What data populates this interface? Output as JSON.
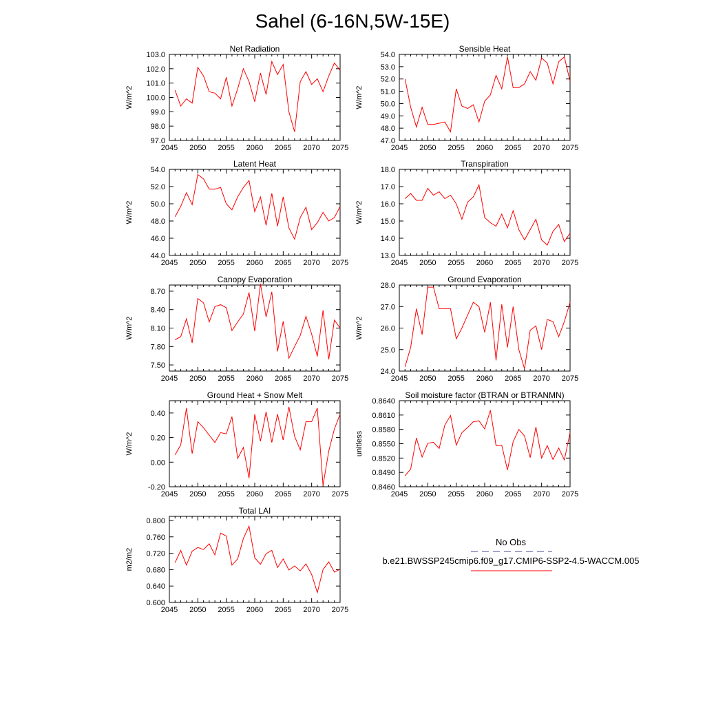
{
  "figure": {
    "title": "Sahel (6-16N,5W-15E)"
  },
  "legend": {
    "obs_label": "No Obs",
    "obs_color": "#4a4a9a",
    "model_label": "b.e21.BWSSP245cmip6.f09_g17.CMIP6-SSP2-4.5-WACCM.005",
    "model_color": "#ff0000"
  },
  "chart_data": [
    {
      "type": "line",
      "title": "Net Radiation",
      "ylabel": "W/m^2",
      "xlim": [
        2045,
        2075
      ],
      "ylim": [
        97.0,
        103.0
      ],
      "x_ticks": [
        "2045",
        "2050",
        "2055",
        "2060",
        "2065",
        "2070",
        "2075"
      ],
      "y_ticks": [
        "97.0",
        "98.0",
        "99.0",
        "100.0",
        "101.0",
        "102.0",
        "103.0"
      ],
      "x": [
        2046,
        2047,
        2048,
        2049,
        2050,
        2051,
        2052,
        2053,
        2054,
        2055,
        2056,
        2057,
        2058,
        2059,
        2060,
        2061,
        2062,
        2063,
        2064,
        2065,
        2066,
        2067,
        2068,
        2069,
        2070,
        2071,
        2072,
        2073,
        2074,
        2075
      ],
      "series": [
        {
          "values": [
            100.5,
            99.4,
            99.9,
            99.6,
            102.1,
            101.5,
            100.4,
            100.3,
            99.9,
            101.4,
            99.4,
            100.6,
            102.0,
            101.1,
            99.7,
            101.7,
            100.2,
            102.5,
            101.6,
            102.3,
            99.0,
            97.6,
            101.1,
            101.8,
            100.9,
            101.3,
            100.4,
            101.5,
            102.4,
            101.9
          ]
        }
      ]
    },
    {
      "type": "line",
      "title": "Sensible Heat",
      "ylabel": "W/m^2",
      "xlim": [
        2045,
        2075
      ],
      "ylim": [
        47.0,
        54.0
      ],
      "x_ticks": [
        "2045",
        "2050",
        "2055",
        "2060",
        "2065",
        "2070",
        "2075"
      ],
      "y_ticks": [
        "47.0",
        "48.0",
        "49.0",
        "50.0",
        "51.0",
        "52.0",
        "53.0",
        "54.0"
      ],
      "x": [
        2046,
        2047,
        2048,
        2049,
        2050,
        2051,
        2052,
        2053,
        2054,
        2055,
        2056,
        2057,
        2058,
        2059,
        2060,
        2061,
        2062,
        2063,
        2064,
        2065,
        2066,
        2067,
        2068,
        2069,
        2070,
        2071,
        2072,
        2073,
        2074,
        2075
      ],
      "series": [
        {
          "values": [
            52.0,
            49.7,
            48.1,
            49.7,
            48.3,
            48.3,
            48.4,
            48.5,
            47.7,
            51.2,
            49.8,
            49.6,
            49.9,
            48.5,
            50.2,
            50.7,
            52.3,
            51.2,
            53.8,
            51.3,
            51.3,
            51.6,
            52.6,
            51.9,
            53.7,
            53.3,
            51.6,
            53.4,
            53.8,
            51.8
          ]
        }
      ]
    },
    {
      "type": "line",
      "title": "Latent Heat",
      "ylabel": "W/m^2",
      "xlim": [
        2045,
        2075
      ],
      "ylim": [
        44.0,
        54.0
      ],
      "x_ticks": [
        "2045",
        "2050",
        "2055",
        "2060",
        "2065",
        "2070",
        "2075"
      ],
      "y_ticks": [
        "44.0",
        "46.0",
        "48.0",
        "50.0",
        "52.0",
        "54.0"
      ],
      "x": [
        2046,
        2047,
        2048,
        2049,
        2050,
        2051,
        2052,
        2053,
        2054,
        2055,
        2056,
        2057,
        2058,
        2059,
        2060,
        2061,
        2062,
        2063,
        2064,
        2065,
        2066,
        2067,
        2068,
        2069,
        2070,
        2071,
        2072,
        2073,
        2074,
        2075
      ],
      "series": [
        {
          "values": [
            48.5,
            49.7,
            51.3,
            49.9,
            53.4,
            52.9,
            51.7,
            51.7,
            51.9,
            50.0,
            49.3,
            50.8,
            51.9,
            52.7,
            49.1,
            50.8,
            47.5,
            51.2,
            47.4,
            50.8,
            47.2,
            45.9,
            48.4,
            49.6,
            47.0,
            47.8,
            49.0,
            48.0,
            48.4,
            49.7
          ]
        }
      ]
    },
    {
      "type": "line",
      "title": "Transpiration",
      "ylabel": "W/m^2",
      "xlim": [
        2045,
        2075
      ],
      "ylim": [
        13.0,
        18.0
      ],
      "x_ticks": [
        "2045",
        "2050",
        "2055",
        "2060",
        "2065",
        "2070",
        "2075"
      ],
      "y_ticks": [
        "13.0",
        "14.0",
        "15.0",
        "16.0",
        "17.0",
        "18.0"
      ],
      "x": [
        2046,
        2047,
        2048,
        2049,
        2050,
        2051,
        2052,
        2053,
        2054,
        2055,
        2056,
        2057,
        2058,
        2059,
        2060,
        2061,
        2062,
        2063,
        2064,
        2065,
        2066,
        2067,
        2068,
        2069,
        2070,
        2071,
        2072,
        2073,
        2074,
        2075
      ],
      "series": [
        {
          "values": [
            16.3,
            16.6,
            16.2,
            16.2,
            16.9,
            16.5,
            16.7,
            16.3,
            16.5,
            16.0,
            15.1,
            16.1,
            16.4,
            17.1,
            15.2,
            14.9,
            14.7,
            15.4,
            14.6,
            15.6,
            14.5,
            13.9,
            14.5,
            15.1,
            13.9,
            13.6,
            14.4,
            14.8,
            13.8,
            14.3
          ]
        }
      ]
    },
    {
      "type": "line",
      "title": "Canopy Evaporation",
      "ylabel": "W/m^2",
      "xlim": [
        2045,
        2075
      ],
      "ylim": [
        7.4,
        8.8
      ],
      "x_ticks": [
        "2045",
        "2050",
        "2055",
        "2060",
        "2065",
        "2070",
        "2075"
      ],
      "y_ticks": [
        "7.50",
        "7.80",
        "8.10",
        "8.40",
        "8.70"
      ],
      "x": [
        2046,
        2047,
        2048,
        2049,
        2050,
        2051,
        2052,
        2053,
        2054,
        2055,
        2056,
        2057,
        2058,
        2059,
        2060,
        2061,
        2062,
        2063,
        2064,
        2065,
        2066,
        2067,
        2068,
        2069,
        2070,
        2071,
        2072,
        2073,
        2074,
        2075
      ],
      "series": [
        {
          "values": [
            7.91,
            7.96,
            8.25,
            7.86,
            8.58,
            8.51,
            8.2,
            8.45,
            8.48,
            8.43,
            8.06,
            8.2,
            8.33,
            8.68,
            8.05,
            8.82,
            8.28,
            8.69,
            7.72,
            8.21,
            7.61,
            7.8,
            7.98,
            8.29,
            8.0,
            7.64,
            8.39,
            7.59,
            8.23,
            8.1
          ]
        }
      ]
    },
    {
      "type": "line",
      "title": "Ground Evaporation",
      "ylabel": "W/m^2",
      "xlim": [
        2045,
        2075
      ],
      "ylim": [
        24.0,
        28.0
      ],
      "x_ticks": [
        "2045",
        "2050",
        "2055",
        "2060",
        "2065",
        "2070",
        "2075"
      ],
      "y_ticks": [
        "24.0",
        "25.0",
        "26.0",
        "27.0",
        "28.0"
      ],
      "x": [
        2046,
        2047,
        2048,
        2049,
        2050,
        2051,
        2052,
        2053,
        2054,
        2055,
        2056,
        2057,
        2058,
        2059,
        2060,
        2061,
        2062,
        2063,
        2064,
        2065,
        2066,
        2067,
        2068,
        2069,
        2070,
        2071,
        2072,
        2073,
        2074,
        2075
      ],
      "series": [
        {
          "values": [
            24.2,
            25.1,
            26.9,
            25.7,
            27.9,
            27.9,
            26.9,
            26.9,
            26.9,
            25.5,
            26.0,
            26.6,
            27.2,
            27.0,
            25.8,
            27.2,
            24.5,
            27.1,
            25.1,
            27.0,
            25.0,
            24.1,
            25.9,
            26.1,
            25.0,
            26.4,
            26.3,
            25.6,
            26.3,
            27.2
          ]
        }
      ]
    },
    {
      "type": "line",
      "title": "Ground Heat + Snow Melt",
      "ylabel": "W/m^2",
      "xlim": [
        2045,
        2075
      ],
      "ylim": [
        -0.2,
        0.5
      ],
      "x_ticks": [
        "2045",
        "2050",
        "2055",
        "2060",
        "2065",
        "2070",
        "2075"
      ],
      "y_ticks": [
        "-0.20",
        "0.00",
        "0.20",
        "0.40"
      ],
      "x": [
        2046,
        2047,
        2048,
        2049,
        2050,
        2051,
        2052,
        2053,
        2054,
        2055,
        2056,
        2057,
        2058,
        2059,
        2060,
        2061,
        2062,
        2063,
        2064,
        2065,
        2066,
        2067,
        2068,
        2069,
        2070,
        2071,
        2072,
        2073,
        2074,
        2075
      ],
      "series": [
        {
          "values": [
            0.06,
            0.14,
            0.44,
            0.07,
            0.33,
            0.28,
            0.22,
            0.16,
            0.24,
            0.23,
            0.37,
            0.03,
            0.12,
            -0.13,
            0.39,
            0.17,
            0.41,
            0.16,
            0.39,
            0.18,
            0.45,
            0.21,
            0.1,
            0.33,
            0.33,
            0.44,
            -0.19,
            0.09,
            0.27,
            0.39
          ]
        }
      ]
    },
    {
      "type": "line",
      "title": "Soil moisture factor (BTRAN or BTRANMN)",
      "ylabel": "unitless",
      "xlim": [
        2045,
        2075
      ],
      "ylim": [
        0.846,
        0.864
      ],
      "x_ticks": [
        "2045",
        "2050",
        "2055",
        "2060",
        "2065",
        "2070",
        "2075"
      ],
      "y_ticks": [
        "0.8460",
        "0.8490",
        "0.8520",
        "0.8550",
        "0.8580",
        "0.8610",
        "0.8640"
      ],
      "x": [
        2046,
        2047,
        2048,
        2049,
        2050,
        2051,
        2052,
        2053,
        2054,
        2055,
        2056,
        2057,
        2058,
        2059,
        2060,
        2061,
        2062,
        2063,
        2064,
        2065,
        2066,
        2067,
        2068,
        2069,
        2070,
        2071,
        2072,
        2073,
        2074,
        2075
      ],
      "series": [
        {
          "values": [
            0.8483,
            0.8497,
            0.8562,
            0.8522,
            0.8551,
            0.8553,
            0.854,
            0.8589,
            0.8609,
            0.8547,
            0.8573,
            0.8584,
            0.8596,
            0.8598,
            0.8581,
            0.862,
            0.8546,
            0.8547,
            0.8495,
            0.8554,
            0.858,
            0.8566,
            0.8521,
            0.8585,
            0.852,
            0.8546,
            0.8517,
            0.8541,
            0.8516,
            0.8573
          ]
        }
      ]
    },
    {
      "type": "line",
      "title": "Total LAI",
      "ylabel": "m2/m2",
      "xlim": [
        2045,
        2075
      ],
      "ylim": [
        0.6,
        0.81
      ],
      "x_ticks": [
        "2045",
        "2050",
        "2055",
        "2060",
        "2065",
        "2070",
        "2075"
      ],
      "y_ticks": [
        "0.600",
        "0.640",
        "0.680",
        "0.720",
        "0.760",
        "0.800"
      ],
      "x": [
        2046,
        2047,
        2048,
        2049,
        2050,
        2051,
        2052,
        2053,
        2054,
        2055,
        2056,
        2057,
        2058,
        2059,
        2060,
        2061,
        2062,
        2063,
        2064,
        2065,
        2066,
        2067,
        2068,
        2069,
        2070,
        2071,
        2072,
        2073,
        2074,
        2075
      ],
      "series": [
        {
          "values": [
            0.697,
            0.727,
            0.691,
            0.725,
            0.734,
            0.729,
            0.743,
            0.716,
            0.769,
            0.762,
            0.691,
            0.706,
            0.756,
            0.786,
            0.709,
            0.693,
            0.719,
            0.727,
            0.685,
            0.706,
            0.679,
            0.689,
            0.677,
            0.694,
            0.668,
            0.624,
            0.68,
            0.699,
            0.674,
            0.681
          ]
        }
      ]
    }
  ]
}
